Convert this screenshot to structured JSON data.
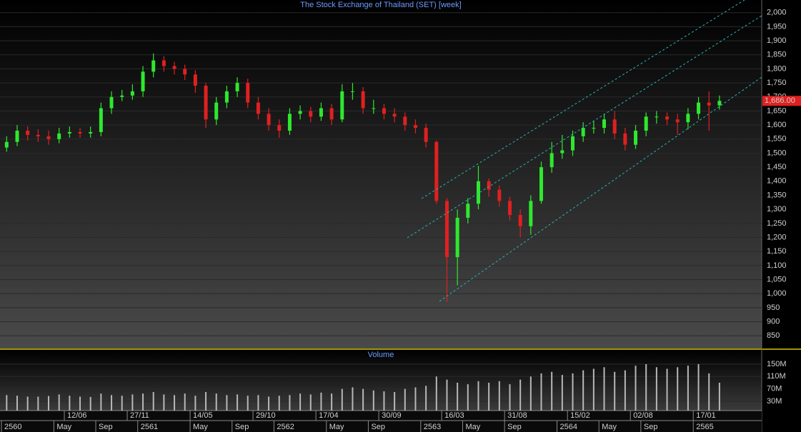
{
  "chart_data": {
    "type": "candlestick",
    "title": "The Stock Exchange of Thailand (SET) [week]",
    "categories": [
      null,
      null,
      null,
      null,
      null,
      null,
      "12/06",
      null,
      null,
      null,
      null,
      null,
      "27/11",
      null,
      null,
      null,
      null,
      null,
      "14/05",
      null,
      null,
      null,
      null,
      null,
      "29/10",
      null,
      null,
      null,
      null,
      null,
      "17/04",
      null,
      null,
      null,
      null,
      null,
      "30/09",
      null,
      null,
      null,
      null,
      null,
      "16/03",
      null,
      null,
      null,
      null,
      null,
      "31/08",
      null,
      null,
      null,
      null,
      null,
      "15/02",
      null,
      null,
      null,
      null,
      null,
      "02/08",
      null,
      null,
      null,
      null,
      null,
      "17/01",
      null,
      null
    ],
    "categories2": [
      "2560",
      null,
      null,
      null,
      null,
      "May",
      null,
      null,
      null,
      "Sep",
      null,
      null,
      null,
      "2561",
      null,
      null,
      null,
      null,
      "May",
      null,
      null,
      null,
      "Sep",
      null,
      null,
      null,
      "2562",
      null,
      null,
      null,
      null,
      "May",
      null,
      null,
      null,
      "Sep",
      null,
      null,
      null,
      null,
      "2563",
      null,
      null,
      null,
      "May",
      null,
      null,
      null,
      "Sep",
      null,
      null,
      null,
      null,
      "2564",
      null,
      null,
      null,
      "May",
      null,
      null,
      null,
      "Sep",
      null,
      null,
      null,
      null,
      "2565",
      null,
      null
    ],
    "open": [
      1520,
      1540,
      1580,
      1565,
      1560,
      1550,
      1570,
      1575,
      1570,
      1575,
      1660,
      1700,
      1705,
      1720,
      1790,
      1830,
      1810,
      1800,
      1780,
      1740,
      1620,
      1680,
      1720,
      1750,
      1680,
      1640,
      1600,
      1580,
      1640,
      1650,
      1630,
      1660,
      1620,
      1720,
      1720,
      1660,
      1660,
      1640,
      1630,
      1600,
      1590,
      1540,
      1330,
      1130,
      1270,
      1320,
      1400,
      1370,
      1330,
      1280,
      1240,
      1330,
      1450,
      1500,
      1510,
      1560,
      1590,
      1590,
      1620,
      1570,
      1530,
      1580,
      1630,
      1630,
      1620,
      1610,
      1640,
      1680,
      1670
    ],
    "high": [
      1560,
      1600,
      1595,
      1585,
      1580,
      1590,
      1595,
      1590,
      1595,
      1680,
      1720,
      1725,
      1745,
      1810,
      1855,
      1845,
      1825,
      1815,
      1795,
      1750,
      1700,
      1740,
      1770,
      1765,
      1700,
      1660,
      1620,
      1660,
      1670,
      1665,
      1680,
      1675,
      1745,
      1750,
      1735,
      1690,
      1675,
      1660,
      1645,
      1620,
      1605,
      1545,
      1340,
      1300,
      1340,
      1455,
      1410,
      1385,
      1345,
      1300,
      1350,
      1470,
      1540,
      1565,
      1580,
      1610,
      1615,
      1640,
      1650,
      1590,
      1600,
      1645,
      1650,
      1645,
      1640,
      1660,
      1700,
      1720,
      1705
    ],
    "low": [
      1505,
      1525,
      1545,
      1540,
      1530,
      1535,
      1555,
      1555,
      1555,
      1560,
      1640,
      1685,
      1690,
      1700,
      1770,
      1790,
      1780,
      1760,
      1715,
      1590,
      1600,
      1660,
      1700,
      1660,
      1620,
      1580,
      1555,
      1565,
      1620,
      1610,
      1615,
      1600,
      1610,
      1690,
      1640,
      1640,
      1620,
      1610,
      1580,
      1570,
      1520,
      1320,
      970,
      1030,
      1250,
      1300,
      1345,
      1310,
      1260,
      1200,
      1210,
      1320,
      1430,
      1480,
      1490,
      1540,
      1570,
      1570,
      1550,
      1510,
      1515,
      1560,
      1605,
      1600,
      1565,
      1585,
      1620,
      1580,
      1655
    ],
    "close": [
      1540,
      1580,
      1565,
      1560,
      1550,
      1570,
      1575,
      1570,
      1575,
      1660,
      1700,
      1705,
      1720,
      1790,
      1830,
      1810,
      1800,
      1780,
      1740,
      1620,
      1680,
      1720,
      1750,
      1680,
      1640,
      1600,
      1580,
      1640,
      1650,
      1630,
      1660,
      1620,
      1720,
      1720,
      1660,
      1660,
      1640,
      1630,
      1600,
      1590,
      1540,
      1330,
      1130,
      1270,
      1320,
      1400,
      1370,
      1330,
      1280,
      1240,
      1330,
      1450,
      1500,
      1510,
      1560,
      1590,
      1590,
      1620,
      1570,
      1530,
      1580,
      1630,
      1630,
      1620,
      1610,
      1640,
      1680,
      1670,
      1686
    ],
    "up_color": "#2ee82e",
    "down_color": "#e02020",
    "ylim": [
      805,
      2045
    ],
    "yticks": [
      850,
      900,
      950,
      {
        "value": 1000,
        "label": "1,000"
      },
      {
        "value": 1050,
        "label": "1,050"
      },
      {
        "value": 1100,
        "label": "1,100"
      },
      {
        "value": 1150,
        "label": "1,150"
      },
      {
        "value": 1200,
        "label": "1,200"
      },
      {
        "value": 1250,
        "label": "1,250"
      },
      {
        "value": 1300,
        "label": "1,300"
      },
      {
        "value": 1350,
        "label": "1,350"
      },
      {
        "value": 1400,
        "label": "1,400"
      },
      {
        "value": 1450,
        "label": "1,450"
      },
      {
        "value": 1500,
        "label": "1,500"
      },
      {
        "value": 1550,
        "label": "1,550"
      },
      {
        "value": 1600,
        "label": "1,600"
      },
      {
        "value": 1650,
        "label": "1,650"
      },
      {
        "value": 1700,
        "label": "1,700"
      },
      {
        "value": 1750,
        "label": "1,750"
      },
      {
        "value": 1800,
        "label": "1,800"
      },
      {
        "value": 1850,
        "label": "1,850"
      },
      {
        "value": 1900,
        "label": "1,900"
      },
      {
        "value": 1950,
        "label": "1,950"
      },
      {
        "value": 2000,
        "label": "2,000"
      }
    ],
    "grid": true,
    "last_price": {
      "value": 1686,
      "label": "1,686.00"
    },
    "volume": {
      "title": "Volume",
      "color": "#b8b8b8",
      "values": [
        50,
        48,
        45,
        45,
        47,
        52,
        48,
        45,
        44,
        55,
        50,
        48,
        52,
        55,
        60,
        52,
        50,
        55,
        48,
        60,
        55,
        50,
        52,
        48,
        50,
        45,
        48,
        50,
        55,
        52,
        58,
        55,
        70,
        75,
        70,
        65,
        62,
        60,
        70,
        75,
        80,
        110,
        100,
        90,
        85,
        95,
        90,
        95,
        85,
        100,
        110,
        120,
        125,
        115,
        120,
        130,
        135,
        140,
        125,
        130,
        145,
        150,
        140,
        135,
        140,
        145,
        150,
        120,
        90
      ],
      "ylim": [
        0,
        196
      ],
      "yticks": [
        {
          "value": 30,
          "label": "30M"
        },
        {
          "value": 70,
          "label": "70M"
        },
        {
          "value": 110,
          "label": "110M"
        },
        {
          "value": 150,
          "label": "150M"
        }
      ]
    }
  }
}
